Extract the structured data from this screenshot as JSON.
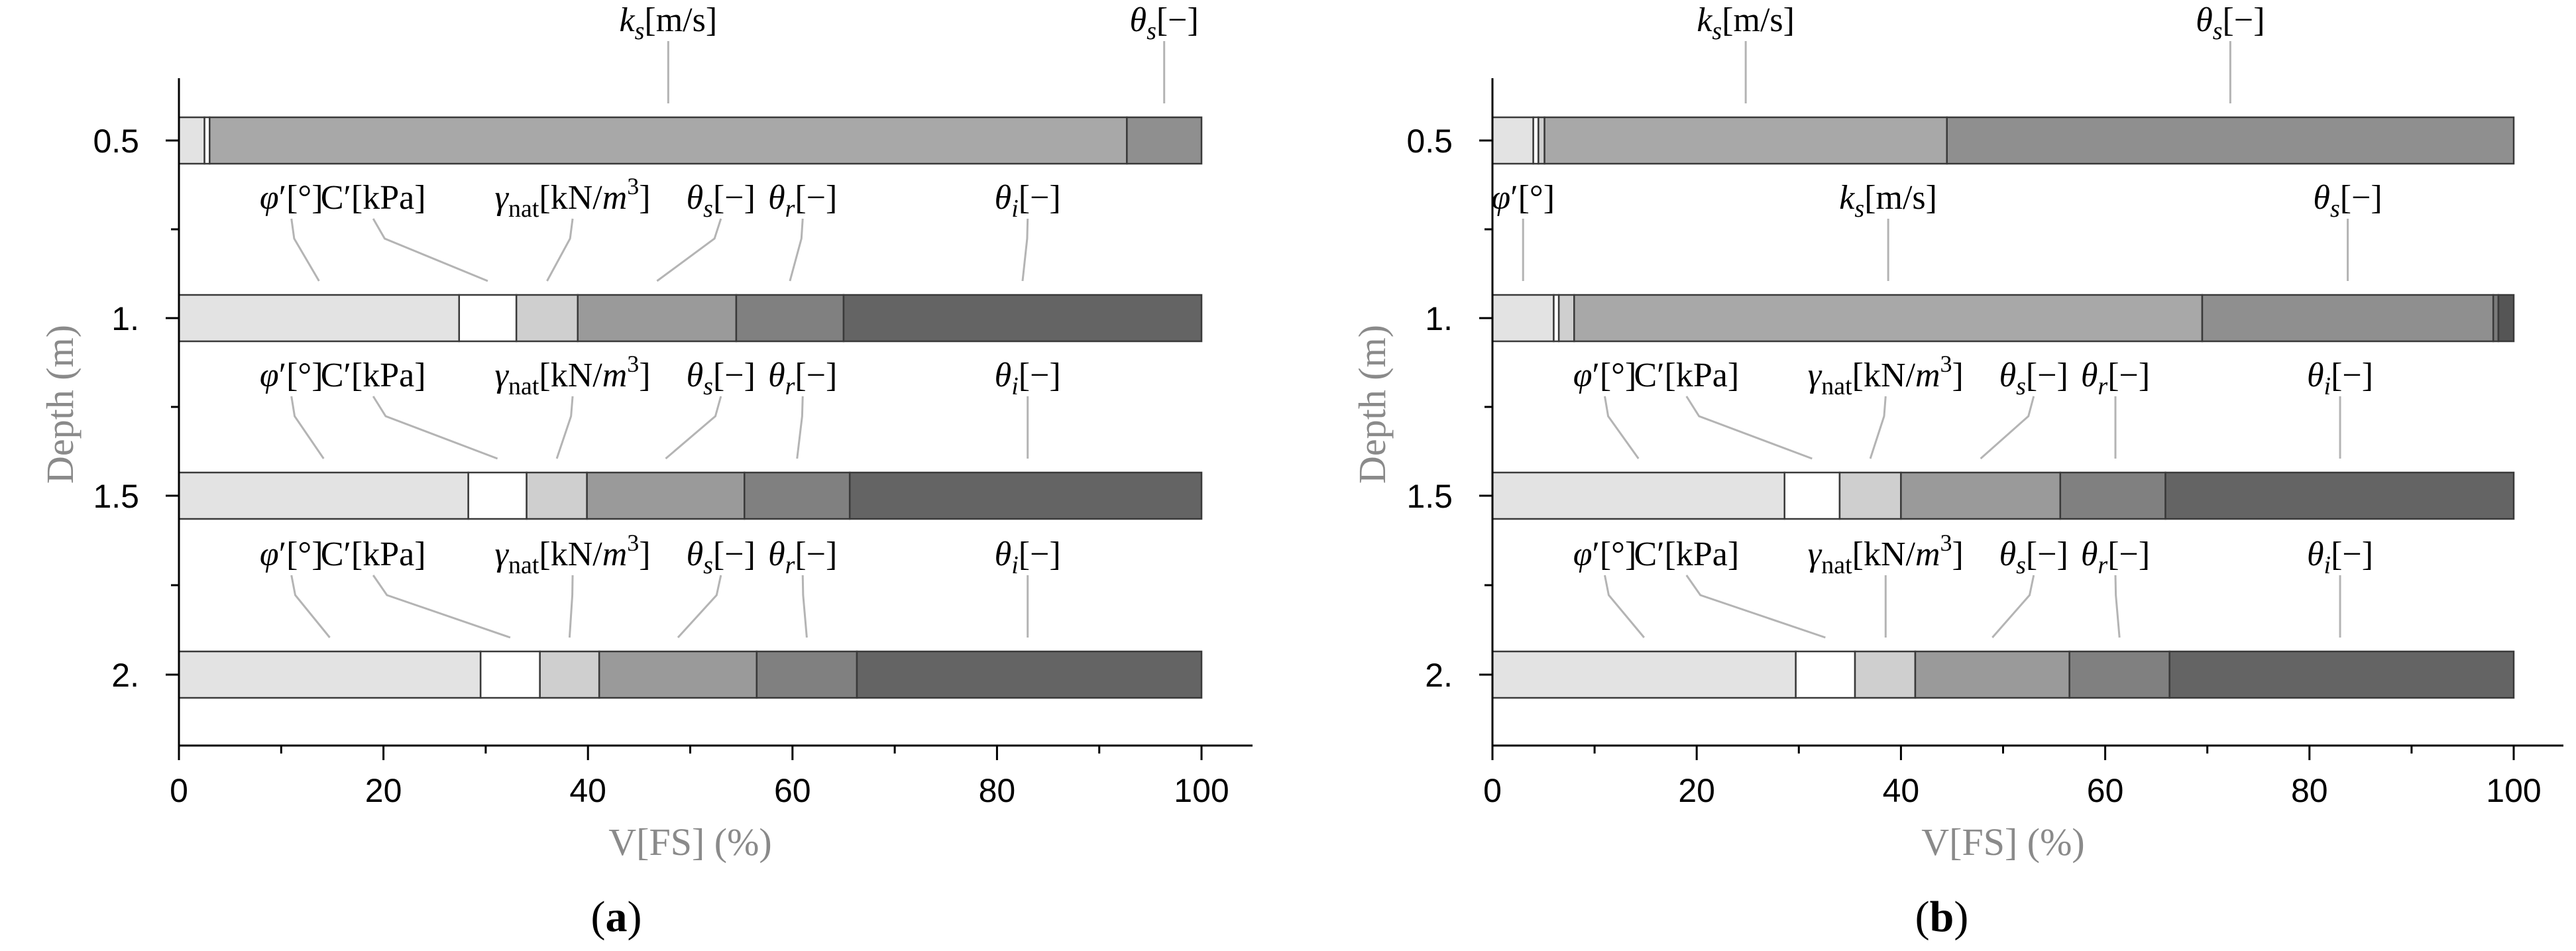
{
  "chart_data": [
    {
      "type": "bar",
      "subtype": "stacked-horizontal-100",
      "panel_label": "a",
      "xlabel": "V[FS] (%)",
      "ylabel": "Depth (m)",
      "xlim": [
        0,
        100
      ],
      "xticks": [
        "0",
        "20",
        "40",
        "60",
        "80",
        "100"
      ],
      "rows": [
        {
          "depth": "0.5",
          "segments": [
            {
              "param": "φ′[°]",
              "value": 2.5,
              "color": "#e3e3e3",
              "labeled": false
            },
            {
              "param": "C′[kPa]",
              "value": 0.5,
              "color": "#ffffff",
              "labeled": false
            },
            {
              "param": "ks[m/s]",
              "value": 89.7,
              "color": "#a8a8a8",
              "labeled": true
            },
            {
              "param": "θs[−]",
              "value": 7.3,
              "color": "#8f8f8f",
              "labeled": true
            }
          ]
        },
        {
          "depth": "1.",
          "segments": [
            {
              "param": "φ′[°]",
              "value": 27.4,
              "color": "#e3e3e3",
              "labeled": true
            },
            {
              "param": "C′[kPa]",
              "value": 5.6,
              "color": "#ffffff",
              "labeled": true
            },
            {
              "param": "γnat[kN/m3]",
              "value": 6.0,
              "color": "#cfcfcf",
              "labeled": true
            },
            {
              "param": "θs[−]",
              "value": 15.5,
              "color": "#9a9a9a",
              "labeled": true
            },
            {
              "param": "θr[−]",
              "value": 10.5,
              "color": "#808080",
              "labeled": true
            },
            {
              "param": "θi[−]",
              "value": 35.0,
              "color": "#646464",
              "labeled": true
            }
          ]
        },
        {
          "depth": "1.5",
          "segments": [
            {
              "param": "φ′[°]",
              "value": 28.3,
              "color": "#e3e3e3",
              "labeled": true
            },
            {
              "param": "C′[kPa]",
              "value": 5.7,
              "color": "#ffffff",
              "labeled": true
            },
            {
              "param": "γnat[kN/m3]",
              "value": 5.9,
              "color": "#cfcfcf",
              "labeled": true
            },
            {
              "param": "θs[−]",
              "value": 15.4,
              "color": "#9a9a9a",
              "labeled": true
            },
            {
              "param": "θr[−]",
              "value": 10.3,
              "color": "#808080",
              "labeled": true
            },
            {
              "param": "θi[−]",
              "value": 34.4,
              "color": "#646464",
              "labeled": true
            }
          ]
        },
        {
          "depth": "2.",
          "segments": [
            {
              "param": "φ′[°]",
              "value": 29.5,
              "color": "#e3e3e3",
              "labeled": true
            },
            {
              "param": "C′[kPa]",
              "value": 5.8,
              "color": "#ffffff",
              "labeled": true
            },
            {
              "param": "γnat[kN/m3]",
              "value": 5.8,
              "color": "#cfcfcf",
              "labeled": true
            },
            {
              "param": "θs[−]",
              "value": 15.4,
              "color": "#9a9a9a",
              "labeled": true
            },
            {
              "param": "θr[−]",
              "value": 9.8,
              "color": "#808080",
              "labeled": true
            },
            {
              "param": "θi[−]",
              "value": 33.7,
              "color": "#646464",
              "labeled": true
            }
          ]
        }
      ]
    },
    {
      "type": "bar",
      "subtype": "stacked-horizontal-100",
      "panel_label": "b",
      "xlabel": "V[FS] (%)",
      "ylabel": "Depth (m)",
      "xlim": [
        0,
        100
      ],
      "xticks": [
        "0",
        "20",
        "40",
        "60",
        "80",
        "100"
      ],
      "rows": [
        {
          "depth": "0.5",
          "segments": [
            {
              "param": "φ′[°]",
              "value": 4.0,
              "color": "#e3e3e3",
              "labeled": false
            },
            {
              "param": "C′[kPa]",
              "value": 0.5,
              "color": "#ffffff",
              "labeled": false
            },
            {
              "param": "γnat[kN/m3]",
              "value": 0.6,
              "color": "#cfcfcf",
              "labeled": false
            },
            {
              "param": "ks[m/s]",
              "value": 39.4,
              "color": "#a8a8a8",
              "labeled": true
            },
            {
              "param": "θs[−]",
              "value": 55.5,
              "color": "#8f8f8f",
              "labeled": true
            }
          ]
        },
        {
          "depth": "1.",
          "segments": [
            {
              "param": "φ′[°]",
              "value": 6.0,
              "color": "#e3e3e3",
              "labeled": true
            },
            {
              "param": "C′[kPa]",
              "value": 0.5,
              "color": "#ffffff",
              "labeled": false
            },
            {
              "param": "γnat[kN/m3]",
              "value": 1.5,
              "color": "#cfcfcf",
              "labeled": false
            },
            {
              "param": "ks[m/s]",
              "value": 61.5,
              "color": "#a8a8a8",
              "labeled": true
            },
            {
              "param": "θs[−]",
              "value": 28.5,
              "color": "#8f8f8f",
              "labeled": true
            },
            {
              "param": "θr[−]",
              "value": 0.5,
              "color": "#7a7a7a",
              "labeled": false
            },
            {
              "param": "θi[−]",
              "value": 1.5,
              "color": "#555555",
              "labeled": false
            }
          ]
        },
        {
          "depth": "1.5",
          "segments": [
            {
              "param": "φ′[°]",
              "value": 28.6,
              "color": "#e3e3e3",
              "labeled": true
            },
            {
              "param": "C′[kPa]",
              "value": 5.4,
              "color": "#ffffff",
              "labeled": true
            },
            {
              "param": "γnat[kN/m3]",
              "value": 6.0,
              "color": "#cfcfcf",
              "labeled": true
            },
            {
              "param": "θs[−]",
              "value": 15.6,
              "color": "#9a9a9a",
              "labeled": true
            },
            {
              "param": "θr[−]",
              "value": 10.3,
              "color": "#808080",
              "labeled": true
            },
            {
              "param": "θi[−]",
              "value": 34.1,
              "color": "#646464",
              "labeled": true
            }
          ]
        },
        {
          "depth": "2.",
          "segments": [
            {
              "param": "φ′[°]",
              "value": 29.7,
              "color": "#e3e3e3",
              "labeled": true
            },
            {
              "param": "C′[kPa]",
              "value": 5.8,
              "color": "#ffffff",
              "labeled": true
            },
            {
              "param": "γnat[kN/m3]",
              "value": 5.9,
              "color": "#cfcfcf",
              "labeled": true
            },
            {
              "param": "θs[−]",
              "value": 15.1,
              "color": "#9a9a9a",
              "labeled": true
            },
            {
              "param": "θr[−]",
              "value": 9.8,
              "color": "#808080",
              "labeled": true
            },
            {
              "param": "θi[−]",
              "value": 33.7,
              "color": "#646464",
              "labeled": true
            }
          ]
        }
      ]
    }
  ]
}
